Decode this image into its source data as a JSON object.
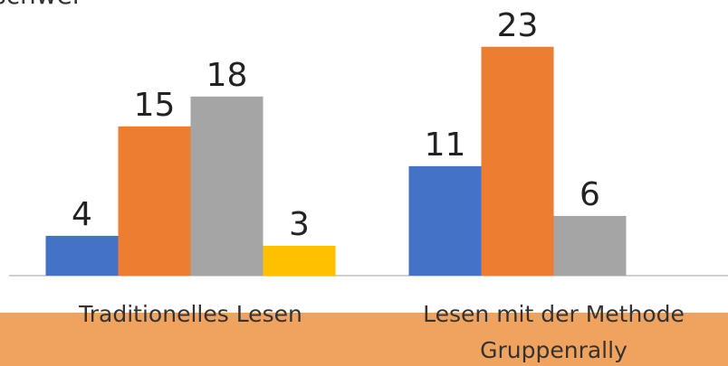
{
  "chart_data": {
    "type": "bar",
    "annotation": "schwer",
    "categories": [
      "Traditionelles Lesen",
      "Lesen mit der Methode Gruppenrally"
    ],
    "series": [
      {
        "color": "#4472c4",
        "values": [
          4,
          11
        ]
      },
      {
        "color": "#ed7d31",
        "values": [
          15,
          23
        ]
      },
      {
        "color": "#a5a5a5",
        "values": [
          18,
          6
        ]
      },
      {
        "color": "#ffc000",
        "values": [
          3,
          null
        ]
      }
    ],
    "ylim": [
      0,
      27.7
    ]
  }
}
